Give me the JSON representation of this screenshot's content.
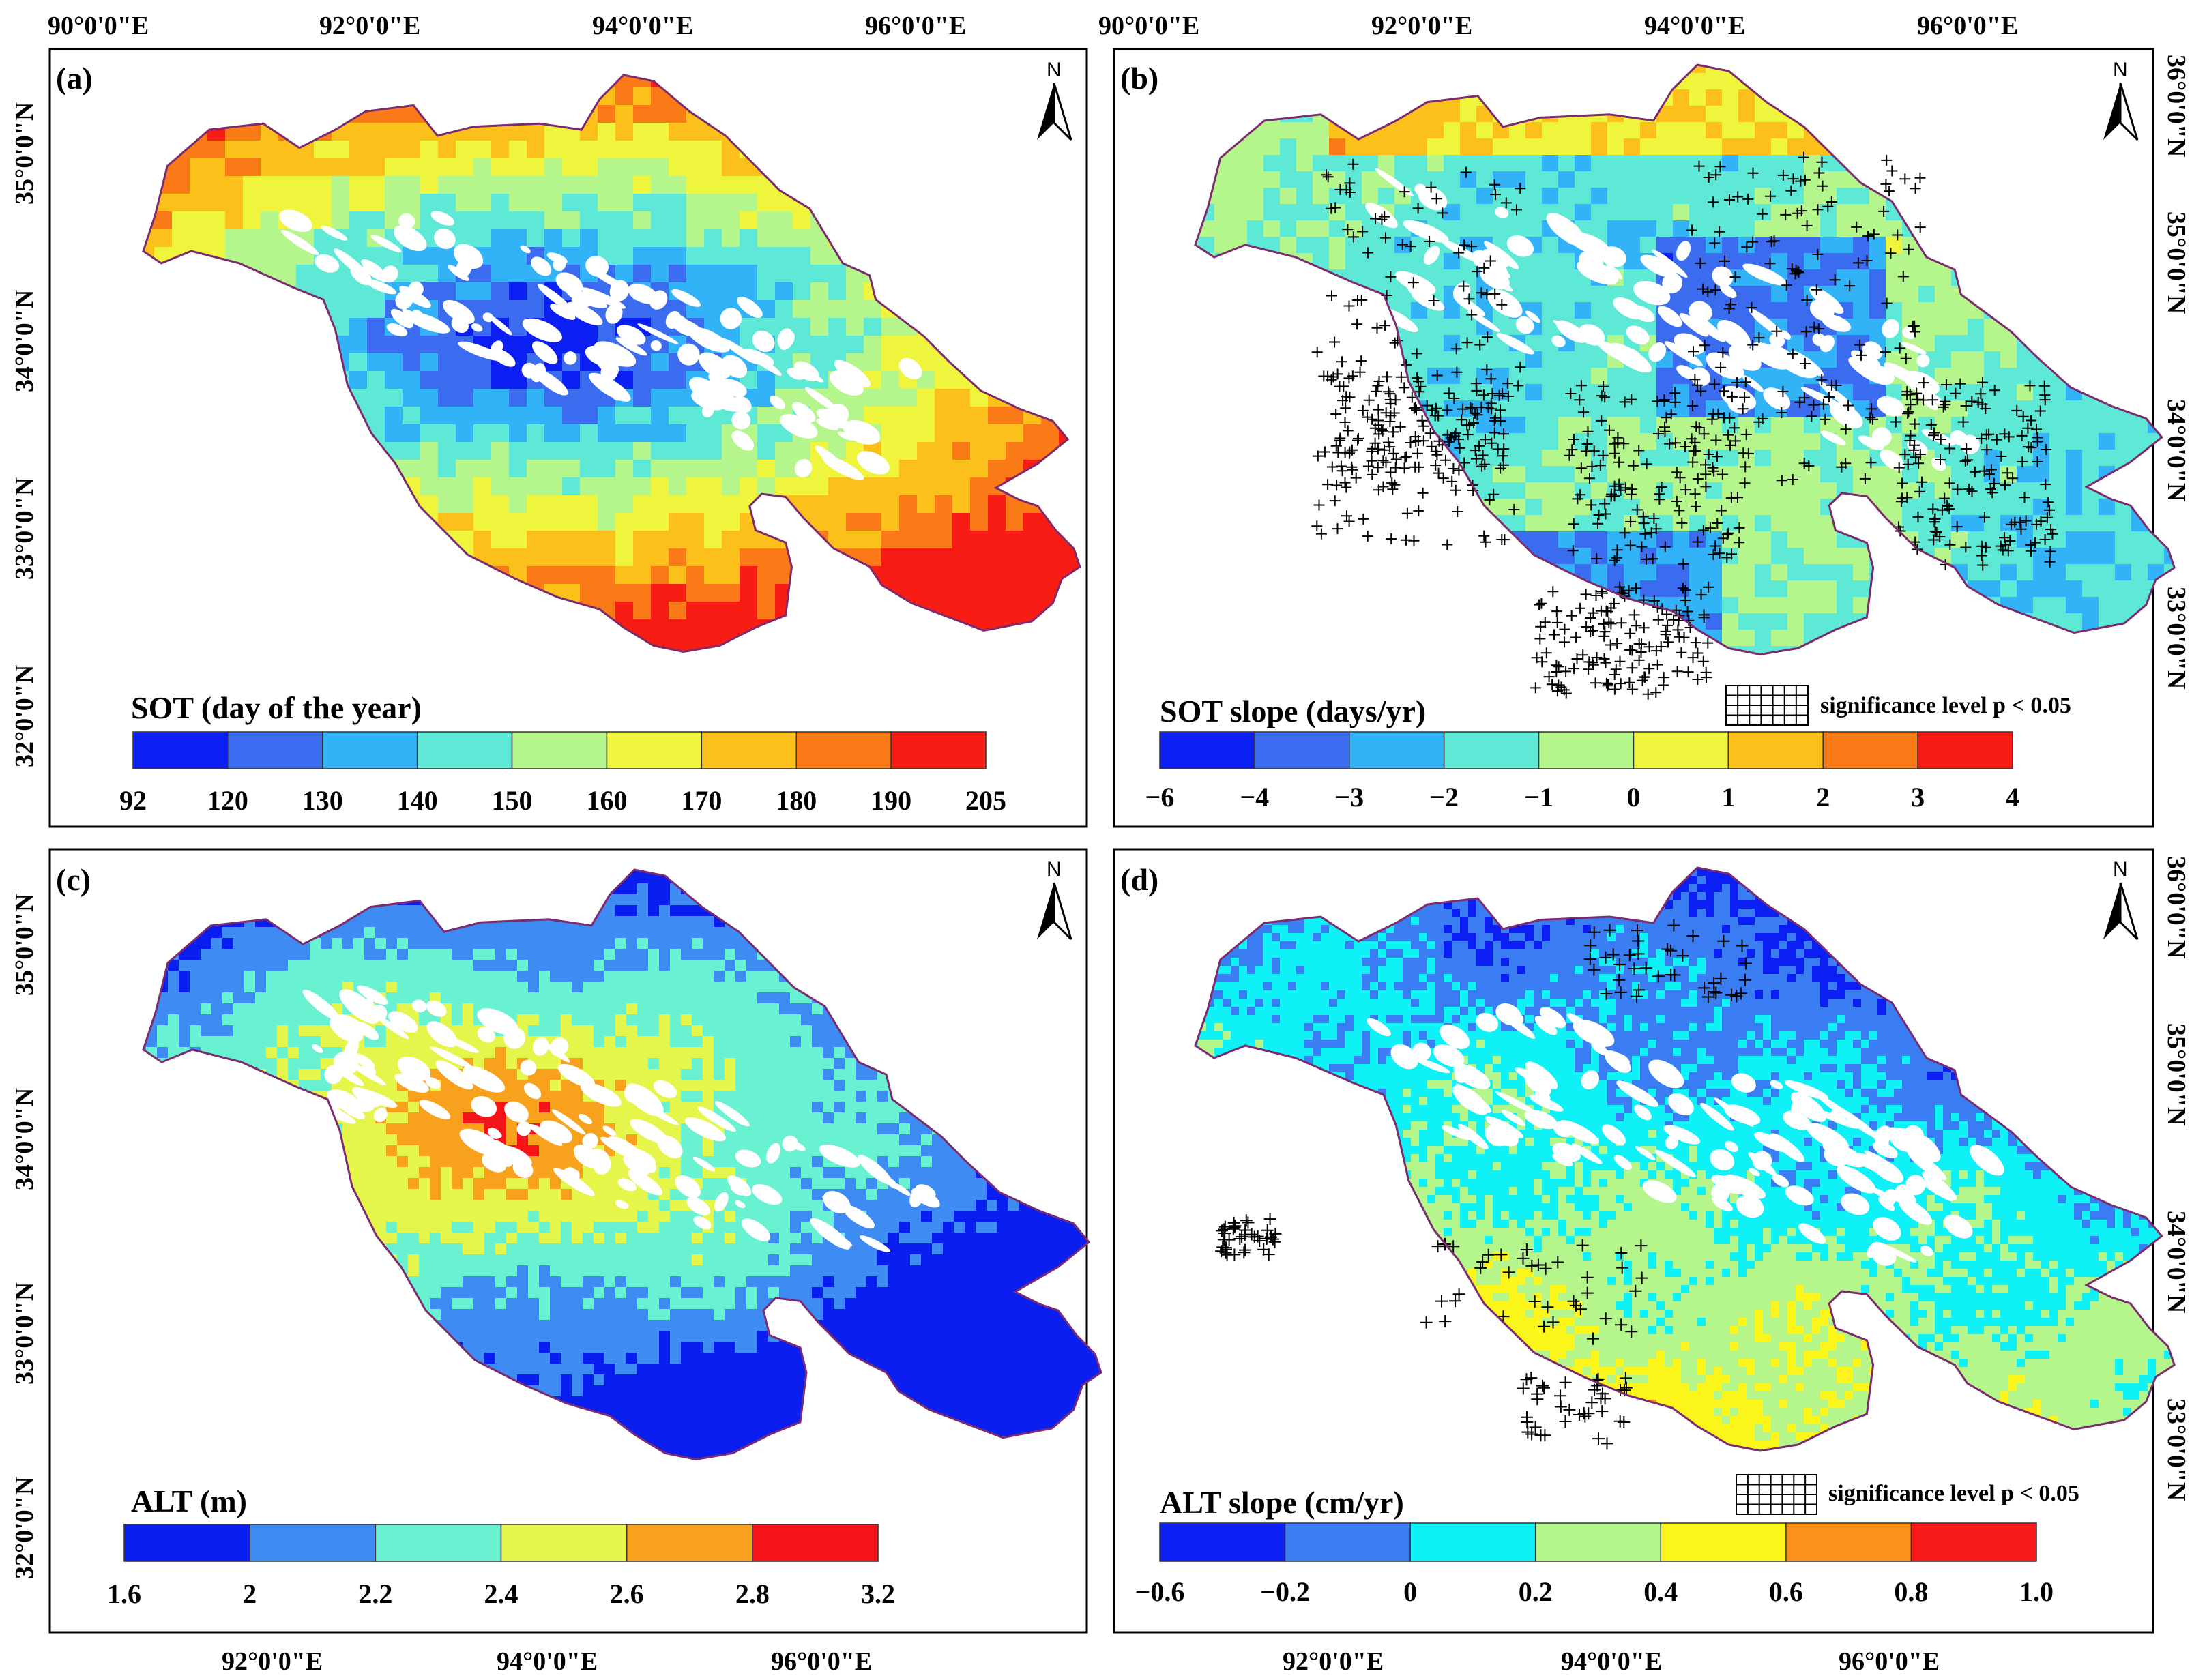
{
  "colors": {
    "sot_ramp": [
      "#0b1ff2",
      "#3b6cf0",
      "#32b2f7",
      "#5ee8d6",
      "#b4f58c",
      "#eef53c",
      "#fbc11a",
      "#fb7a18",
      "#f71d15"
    ],
    "alt_ramp": [
      "#0a1ef0",
      "#3e8bf3",
      "#68f2d2",
      "#e6f54a",
      "#f8a11d",
      "#f5141a"
    ],
    "alt_slope_ramp": [
      "#0b1ff2",
      "#3a7df2",
      "#0ef2f7",
      "#b4f58c",
      "#fbf51a",
      "#fb9118",
      "#f81a18"
    ],
    "boundary": "#7b2b6e",
    "nodata": "#ffffff"
  },
  "panels": [
    {
      "id": "a",
      "label": "(a)",
      "colorbar_title": "SOT (day of the year)",
      "colorbar_ticks": [
        "92",
        "120",
        "130",
        "140",
        "150",
        "160",
        "170",
        "180",
        "190",
        "205"
      ],
      "lon_ticks_top": [
        "90°0'0\"E",
        "92°0'0\"E",
        "94°0'0\"E",
        "96°0'0\"E"
      ],
      "lat_ticks_left": [
        "35°0'0\"N",
        "34°0'0\"N",
        "33°0'0\"N",
        "32°0'0\"N"
      ],
      "north_label": "N"
    },
    {
      "id": "b",
      "label": "(b)",
      "colorbar_title": "SOT slope (days/yr)",
      "colorbar_ticks": [
        "−6",
        "−4",
        "−3",
        "−2",
        "−1",
        "0",
        "1",
        "2",
        "3",
        "4"
      ],
      "lon_ticks_top": [
        "90°0'0\"E",
        "92°0'0\"E",
        "94°0'0\"E",
        "96°0'0\"E"
      ],
      "lat_ticks_right": [
        "36°0'0\"N",
        "35°0'0\"N",
        "34°0'0\"N",
        "33°0'0\"N"
      ],
      "significance_label": "significance level  p < 0.05",
      "north_label": "N"
    },
    {
      "id": "c",
      "label": "(c)",
      "colorbar_title": "ALT (m)",
      "colorbar_ticks": [
        "1.6",
        "2",
        "2.2",
        "2.4",
        "2.6",
        "2.8",
        "3.2"
      ],
      "lon_ticks_bottom": [
        "92°0'0\"E",
        "94°0'0\"E",
        "96°0'0\"E"
      ],
      "lat_ticks_left": [
        "35°0'0\"N",
        "34°0'0\"N",
        "33°0'0\"N",
        "32°0'0\"N"
      ],
      "north_label": "N"
    },
    {
      "id": "d",
      "label": "(d)",
      "colorbar_title": "ALT slope (cm/yr)",
      "colorbar_ticks": [
        "−0.6",
        "−0.2",
        "0",
        "0.2",
        "0.4",
        "0.6",
        "0.8",
        "1.0"
      ],
      "lon_ticks_bottom": [
        "92°0'0\"E",
        "94°0'0\"E",
        "96°0'0\"E"
      ],
      "lat_ticks_right": [
        "36°0'0\"N",
        "35°0'0\"N",
        "34°0'0\"N",
        "33°0'0\"N"
      ],
      "significance_label": "significance level  p < 0.05",
      "north_label": "N"
    }
  ]
}
